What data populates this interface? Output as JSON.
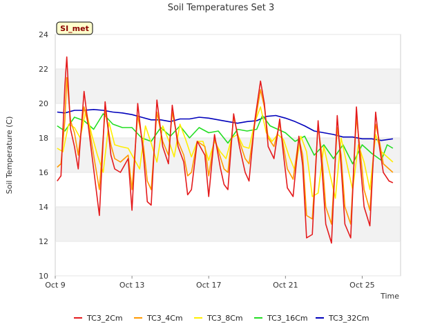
{
  "chart_data": {
    "type": "line",
    "title": "Soil Temperatures Set 3",
    "xlabel": "Time",
    "ylabel": "Soil Temperature (C)",
    "badge": "SI_met",
    "ylim": [
      10,
      24
    ],
    "yticks": [
      "10",
      "12",
      "14",
      "16",
      "18",
      "20",
      "22",
      "24"
    ],
    "xlim_days": [
      9,
      27
    ],
    "xticks": [
      {
        "day": 9,
        "label": "Oct 9"
      },
      {
        "day": 13,
        "label": "Oct 13"
      },
      {
        "day": 17,
        "label": "Oct 17"
      },
      {
        "day": 21,
        "label": "Oct 21"
      },
      {
        "day": 25,
        "label": "Oct 25"
      }
    ],
    "grid": true,
    "legend_position": "bottom",
    "series": [
      {
        "name": "TC3_2Cm",
        "color": "#e41a1c",
        "x": [
          9.1,
          9.3,
          9.5,
          9.6,
          9.8,
          10.0,
          10.2,
          10.5,
          10.8,
          11.0,
          11.3,
          11.6,
          11.9,
          12.1,
          12.4,
          12.8,
          13.0,
          13.3,
          13.6,
          13.8,
          14.0,
          14.3,
          14.6,
          14.9,
          15.1,
          15.4,
          15.7,
          15.9,
          16.1,
          16.4,
          16.8,
          17.0,
          17.3,
          17.6,
          17.8,
          18.0,
          18.3,
          18.6,
          18.9,
          19.1,
          19.4,
          19.7,
          19.9,
          20.1,
          20.4,
          20.7,
          20.9,
          21.1,
          21.4,
          21.7,
          21.9,
          22.1,
          22.4,
          22.7,
          22.9,
          23.1,
          23.4,
          23.7,
          23.9,
          24.1,
          24.4,
          24.7,
          24.9,
          25.1,
          25.4,
          25.7,
          25.9,
          26.1,
          26.4,
          26.6
        ],
        "y": [
          15.5,
          15.8,
          21.0,
          22.7,
          18.5,
          17.5,
          16.2,
          20.7,
          18.0,
          16.2,
          13.5,
          20.1,
          17.0,
          16.2,
          16.0,
          16.8,
          13.8,
          20.0,
          17.0,
          14.3,
          14.1,
          20.2,
          17.5,
          16.5,
          19.9,
          17.5,
          16.6,
          14.7,
          15.0,
          17.8,
          17.0,
          14.6,
          18.2,
          16.3,
          15.3,
          15.0,
          19.4,
          17.5,
          16.0,
          15.5,
          19.0,
          21.3,
          20.0,
          17.5,
          16.8,
          19.1,
          17.0,
          15.1,
          14.6,
          18.1,
          16.4,
          12.2,
          12.4,
          19.0,
          16.3,
          13.0,
          11.9,
          19.3,
          16.4,
          13.0,
          12.2,
          19.8,
          16.5,
          14.0,
          12.9,
          19.5,
          17.5,
          16.0,
          15.5,
          15.4
        ]
      },
      {
        "name": "TC3_4Cm",
        "color": "#ff9900",
        "x": [
          9.1,
          9.3,
          9.5,
          9.6,
          9.8,
          10.0,
          10.2,
          10.5,
          10.8,
          11.0,
          11.3,
          11.6,
          11.9,
          12.1,
          12.4,
          12.8,
          13.0,
          13.3,
          13.6,
          13.8,
          14.0,
          14.3,
          14.6,
          14.9,
          15.1,
          15.4,
          15.7,
          15.9,
          16.1,
          16.4,
          16.8,
          17.0,
          17.3,
          17.6,
          17.8,
          18.0,
          18.3,
          18.6,
          18.9,
          19.1,
          19.4,
          19.7,
          19.9,
          20.1,
          20.4,
          20.7,
          20.9,
          21.1,
          21.4,
          21.7,
          21.9,
          22.1,
          22.4,
          22.7,
          22.9,
          23.1,
          23.4,
          23.7,
          23.9,
          24.1,
          24.4,
          24.7,
          24.9,
          25.1,
          25.4,
          25.7,
          25.9,
          26.1,
          26.4,
          26.6
        ],
        "y": [
          16.3,
          16.5,
          19.0,
          21.5,
          19.0,
          18.3,
          17.0,
          19.8,
          18.4,
          17.0,
          15.0,
          19.6,
          17.6,
          16.8,
          16.6,
          17.0,
          15.0,
          19.3,
          17.5,
          15.5,
          15.0,
          19.5,
          17.8,
          17.0,
          19.5,
          17.8,
          17.0,
          15.8,
          16.0,
          17.8,
          17.5,
          15.8,
          18.0,
          16.9,
          16.2,
          16.0,
          19.2,
          17.8,
          16.8,
          16.5,
          18.8,
          20.8,
          19.8,
          18.0,
          17.5,
          18.8,
          17.5,
          16.2,
          15.6,
          18.0,
          17.0,
          13.5,
          13.3,
          18.7,
          17.0,
          14.0,
          13.0,
          18.6,
          17.0,
          14.0,
          13.0,
          19.2,
          17.2,
          15.0,
          13.8,
          18.8,
          17.8,
          16.5,
          16.2,
          16.0
        ]
      },
      {
        "name": "TC3_8Cm",
        "color": "#ffee00",
        "x": [
          9.1,
          9.4,
          9.7,
          10.0,
          10.3,
          10.6,
          10.9,
          11.2,
          11.5,
          11.8,
          12.1,
          12.4,
          12.8,
          13.1,
          13.4,
          13.7,
          14.0,
          14.3,
          14.6,
          14.9,
          15.2,
          15.5,
          15.8,
          16.1,
          16.4,
          16.7,
          17.0,
          17.3,
          17.6,
          17.9,
          18.2,
          18.5,
          18.8,
          19.1,
          19.4,
          19.7,
          20.0,
          20.3,
          20.6,
          20.9,
          21.2,
          21.5,
          21.8,
          22.1,
          22.4,
          22.7,
          23.0,
          23.3,
          23.6,
          23.9,
          24.2,
          24.5,
          24.8,
          25.1,
          25.4,
          25.7,
          26.0,
          26.3,
          26.6
        ],
        "y": [
          17.4,
          17.2,
          18.8,
          18.6,
          18.0,
          19.6,
          18.2,
          17.0,
          16.0,
          18.9,
          17.6,
          17.5,
          17.4,
          16.8,
          16.2,
          18.7,
          17.7,
          16.6,
          18.7,
          17.9,
          16.9,
          18.8,
          17.9,
          16.9,
          17.8,
          17.8,
          16.7,
          17.8,
          17.2,
          16.8,
          18.0,
          18.2,
          17.5,
          17.4,
          18.9,
          19.8,
          18.3,
          17.8,
          18.2,
          17.9,
          16.9,
          16.1,
          18.1,
          17.2,
          14.6,
          14.8,
          17.5,
          16.0,
          14.5,
          18.0,
          16.5,
          15.0,
          17.6,
          16.6,
          15.0,
          18.2,
          17.2,
          16.9,
          16.6
        ]
      },
      {
        "name": "TC3_16Cm",
        "color": "#22dd22",
        "x": [
          9.1,
          9.5,
          10.0,
          10.5,
          11.0,
          11.5,
          12.0,
          12.5,
          13.0,
          13.5,
          14.0,
          14.5,
          15.0,
          15.5,
          16.0,
          16.5,
          17.0,
          17.5,
          18.0,
          18.5,
          19.0,
          19.5,
          19.8,
          20.2,
          20.6,
          21.0,
          21.5,
          22.0,
          22.5,
          23.0,
          23.5,
          24.0,
          24.5,
          25.0,
          25.5,
          26.0,
          26.3,
          26.6
        ],
        "y": [
          18.7,
          18.4,
          19.2,
          19.0,
          18.5,
          19.4,
          18.8,
          18.6,
          18.6,
          18.0,
          17.8,
          18.6,
          18.1,
          18.7,
          18.0,
          18.6,
          18.3,
          18.4,
          17.7,
          18.5,
          18.4,
          18.5,
          19.3,
          18.7,
          18.5,
          18.3,
          17.8,
          18.1,
          17.0,
          17.6,
          16.8,
          17.6,
          16.5,
          17.6,
          17.1,
          16.7,
          17.6,
          17.4
        ]
      },
      {
        "name": "TC3_32Cm",
        "color": "#0000bb",
        "x": [
          9.1,
          9.5,
          10.0,
          10.5,
          11.0,
          11.5,
          12.0,
          12.5,
          13.0,
          13.5,
          14.0,
          14.5,
          15.0,
          15.5,
          16.0,
          16.5,
          17.0,
          17.5,
          18.0,
          18.5,
          19.0,
          19.5,
          20.0,
          20.5,
          21.0,
          21.5,
          22.0,
          22.5,
          23.0,
          23.5,
          24.0,
          24.5,
          25.0,
          25.5,
          26.0,
          26.6
        ],
        "y": [
          19.5,
          19.45,
          19.6,
          19.6,
          19.65,
          19.6,
          19.5,
          19.45,
          19.35,
          19.2,
          19.05,
          19.05,
          18.95,
          19.1,
          19.1,
          19.2,
          19.15,
          19.05,
          18.95,
          18.85,
          18.95,
          19.0,
          19.25,
          19.3,
          19.15,
          18.95,
          18.7,
          18.4,
          18.3,
          18.2,
          18.05,
          18.05,
          17.95,
          17.95,
          17.85,
          17.95
        ]
      }
    ]
  }
}
